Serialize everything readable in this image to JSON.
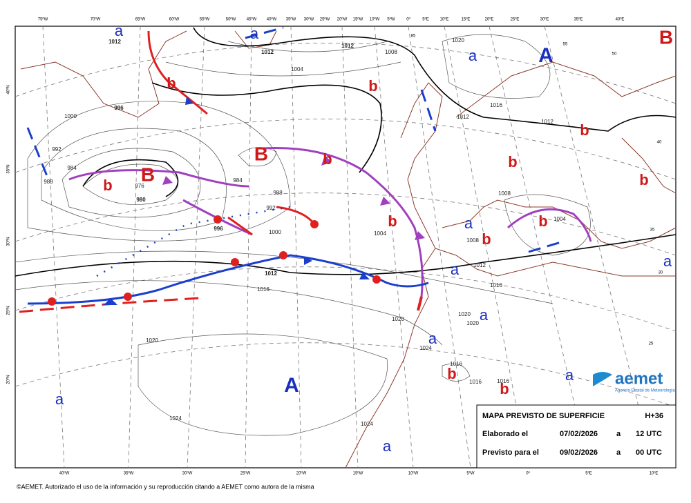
{
  "map": {
    "centers_low_high": [
      {
        "label": "a",
        "kind": "low-blue"
      },
      {
        "label": "a",
        "kind": "low-blue"
      },
      {
        "label": "a",
        "kind": "low-blue"
      },
      {
        "label": "a",
        "kind": "low-blue"
      },
      {
        "label": "a",
        "kind": "low-blue"
      },
      {
        "label": "a",
        "kind": "low-blue"
      },
      {
        "label": "a",
        "kind": "low-blue"
      },
      {
        "label": "a",
        "kind": "low-blue"
      },
      {
        "label": "a",
        "kind": "low-blue"
      },
      {
        "label": "a",
        "kind": "low-blue"
      },
      {
        "label": "a",
        "kind": "low-blue"
      },
      {
        "label": "A",
        "kind": "high"
      },
      {
        "label": "A",
        "kind": "high"
      },
      {
        "label": "b",
        "kind": "low"
      },
      {
        "label": "b",
        "kind": "low"
      },
      {
        "label": "b",
        "kind": "low"
      },
      {
        "label": "b",
        "kind": "low"
      },
      {
        "label": "b",
        "kind": "low"
      },
      {
        "label": "b",
        "kind": "low"
      },
      {
        "label": "b",
        "kind": "low"
      },
      {
        "label": "b",
        "kind": "low"
      },
      {
        "label": "b",
        "kind": "low"
      },
      {
        "label": "b",
        "kind": "low"
      },
      {
        "label": "b",
        "kind": "low"
      },
      {
        "label": "b",
        "kind": "low"
      },
      {
        "label": "B",
        "kind": "deep-low"
      },
      {
        "label": "B",
        "kind": "deep-low"
      },
      {
        "label": "B",
        "kind": "deep-low"
      }
    ],
    "isobar_labels": [
      "1012",
      "1012",
      "1012",
      "1004",
      "1008",
      "1020",
      "1016",
      "1012",
      "1012",
      "996",
      "1000",
      "992",
      "984",
      "988",
      "976",
      "980",
      "984",
      "988",
      "992",
      "996",
      "1000",
      "1004",
      "1012",
      "1016",
      "1020",
      "1020",
      "1024",
      "1024",
      "1024",
      "1016",
      "1016",
      "1016",
      "1020",
      "1020",
      "1016",
      "1012",
      "1008",
      "1008",
      "1004"
    ],
    "lon_top": [
      "75ºW",
      "70ºW",
      "65ºW",
      "60ºW",
      "55ºW",
      "50ºW",
      "45ºW",
      "40ºW",
      "35ºW",
      "30ºW",
      "25ºW",
      "20ºW",
      "15ºW",
      "10ºW",
      "5ºW",
      "0º",
      "5ºE",
      "10ºE",
      "15ºE",
      "20ºE",
      "25ºE",
      "30ºE",
      "35ºE",
      "40ºE"
    ],
    "lon_bottom": [
      "40ºW",
      "35ºW",
      "30ºW",
      "25ºW",
      "20ºW",
      "15ºW",
      "10ºW",
      "5ºW",
      "0º",
      "5ºE",
      "10ºE"
    ],
    "lat_left": [
      "40ºN",
      "35ºN",
      "30ºN",
      "25ºN",
      "20ºN"
    ],
    "lat_right": [
      "55",
      "50",
      "40",
      "35",
      "30",
      "25",
      "85"
    ]
  },
  "logo": {
    "name": "aemet",
    "subtitle": "Agencia Estatal de Meteorología"
  },
  "info_box": {
    "title": "MAPA PREVISTO DE SUPERFICIE",
    "lead_time": "H+36",
    "rows": [
      [
        "Elaborado el",
        "07/02/2026",
        "a",
        "12 UTC"
      ],
      [
        "Previsto para el",
        "09/02/2026",
        "a",
        "00 UTC"
      ]
    ]
  },
  "footer": "©AEMET. Autorizado el uso de la información y su reproducción citando a AEMET como autora de la misma"
}
